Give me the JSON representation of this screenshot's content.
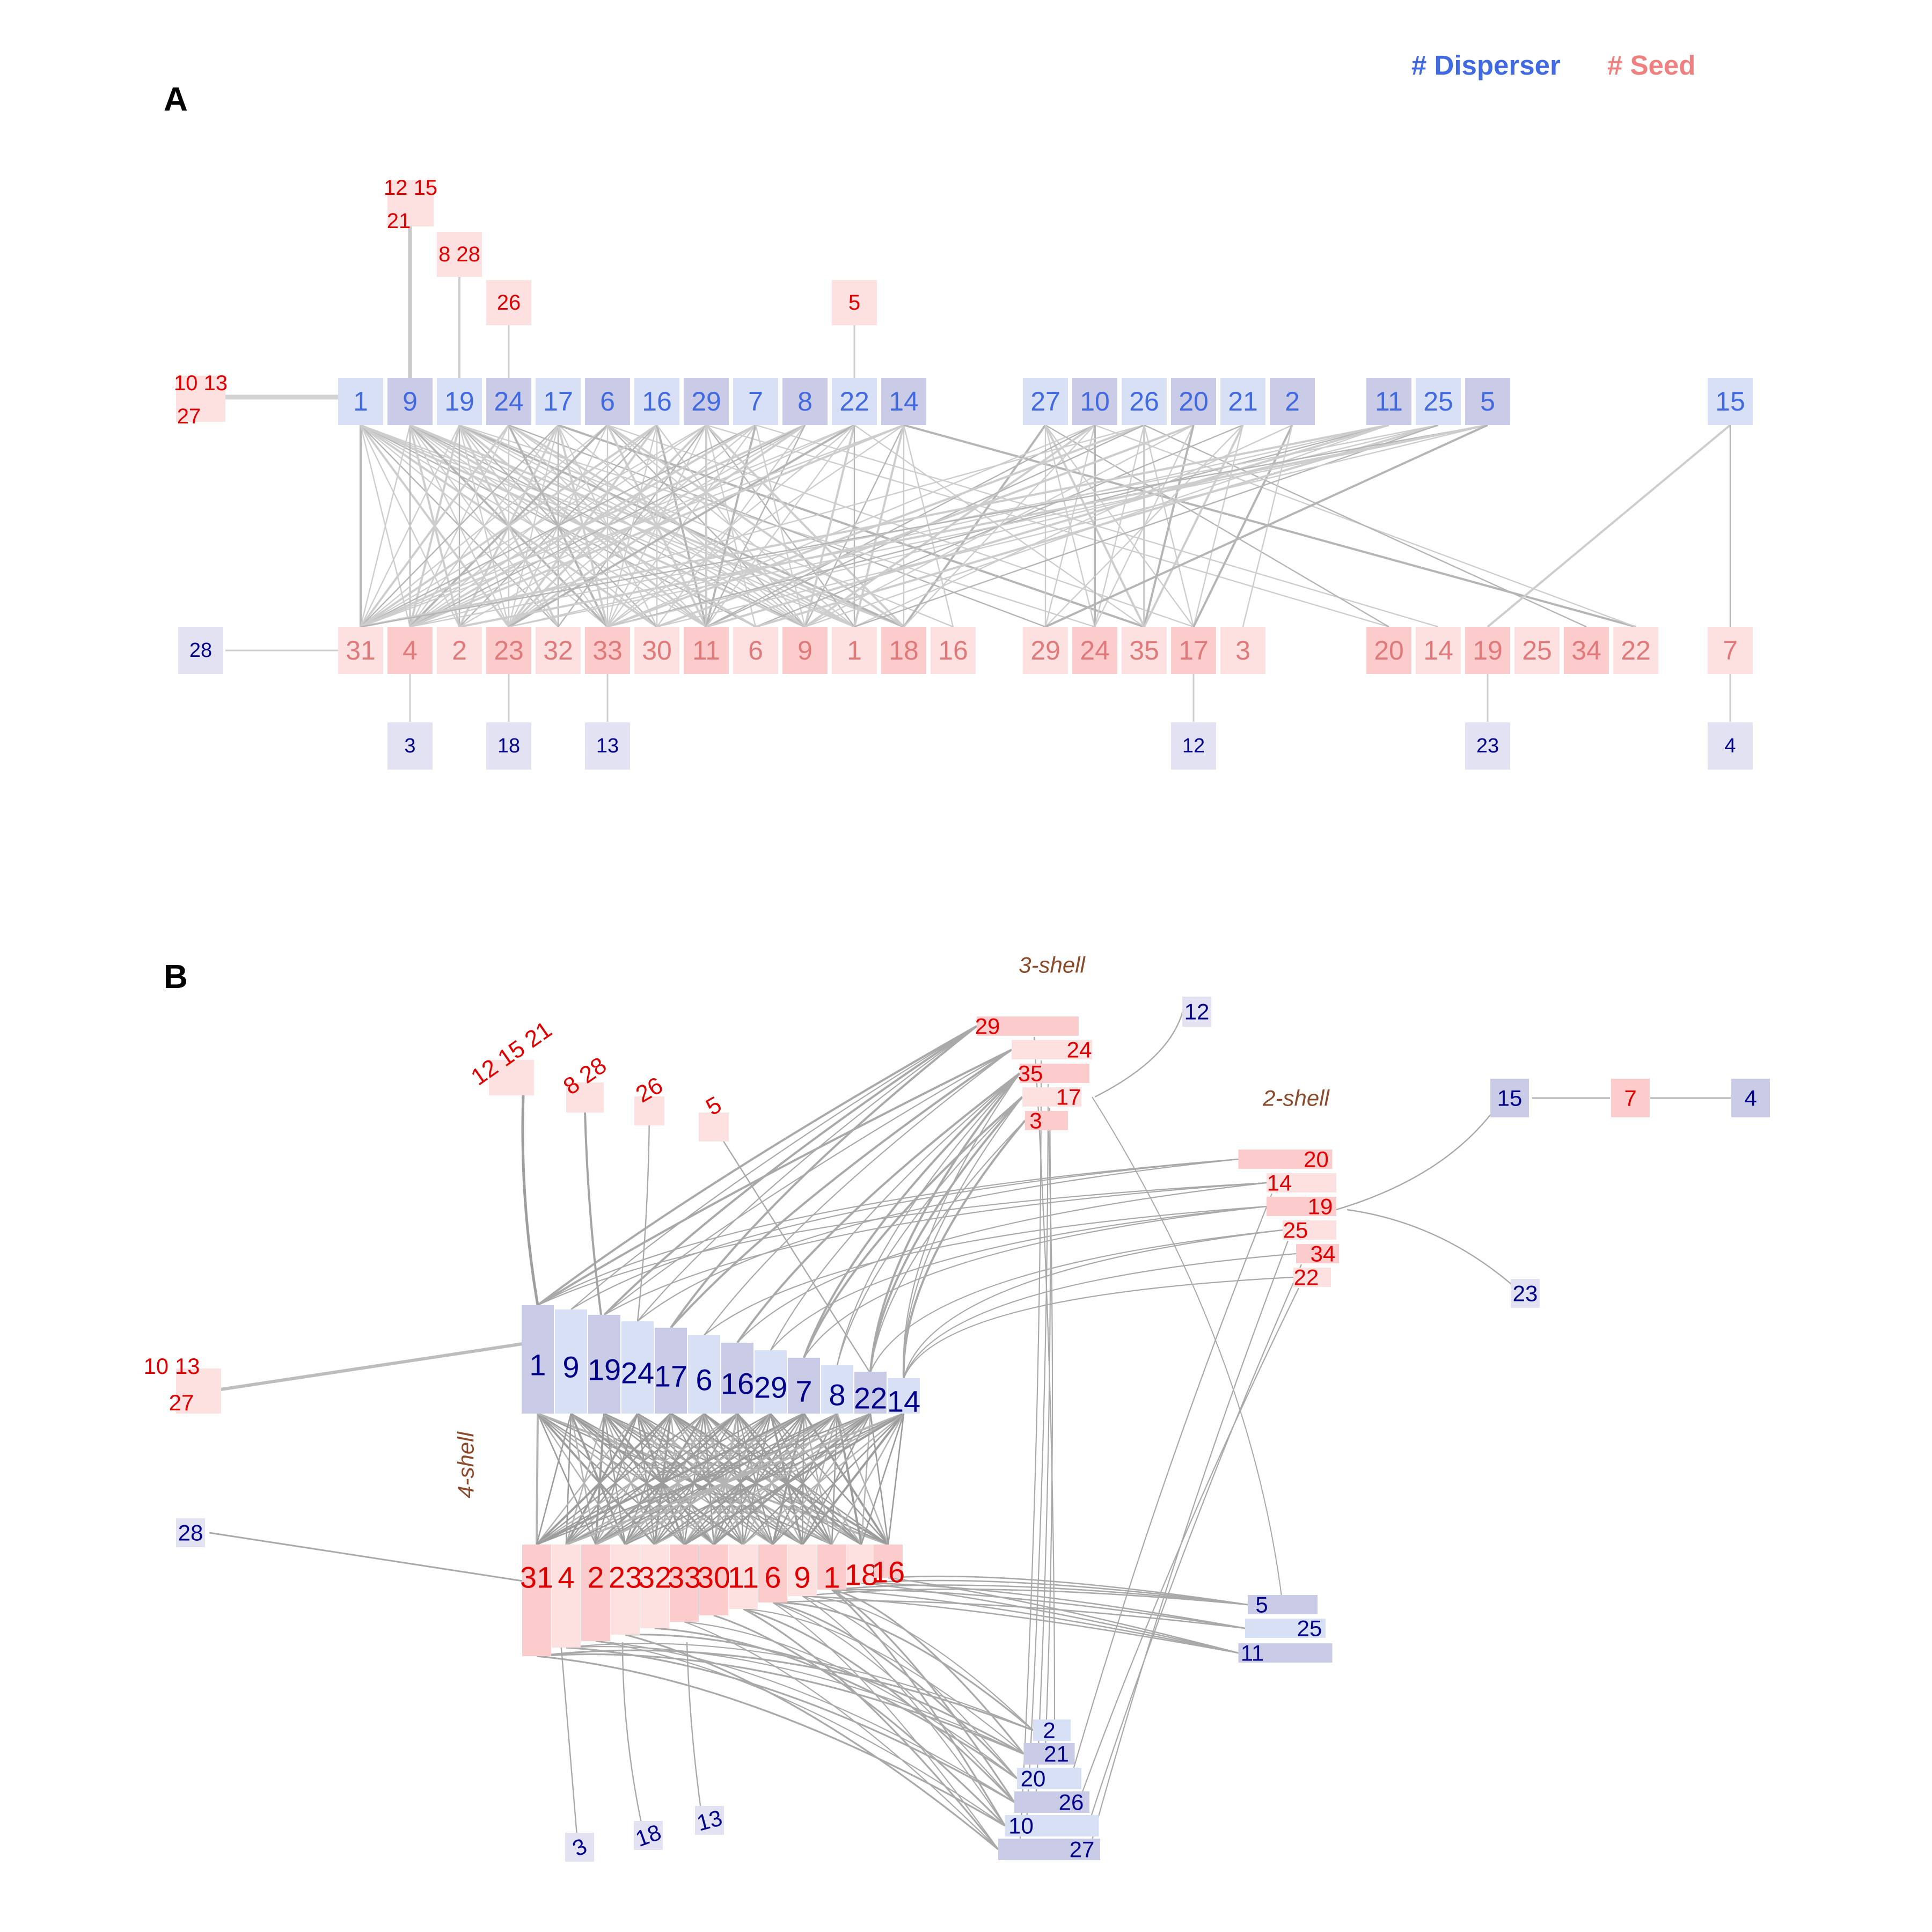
{
  "legend": {
    "disperser": "# Disperser",
    "seed": "# Seed",
    "disperser_color": "#4169e1",
    "seed_color": "#f08080"
  },
  "panel_a": {
    "label": "A",
    "disperser_row": [
      "1",
      "9",
      "19",
      "24",
      "17",
      "6",
      "16",
      "29",
      "7",
      "8",
      "22",
      "14",
      "27",
      "10",
      "26",
      "20",
      "21",
      "2",
      "11",
      "25",
      "5",
      "15"
    ],
    "seed_row": [
      "31",
      "4",
      "2",
      "23",
      "32",
      "33",
      "30",
      "11",
      "6",
      "9",
      "1",
      "18",
      "16",
      "29",
      "24",
      "35",
      "17",
      "3",
      "20",
      "14",
      "19",
      "25",
      "34",
      "22",
      "7"
    ],
    "seed_satellites": [
      {
        "label": "10 13 27",
        "attached_to": "1"
      },
      {
        "label": "12 15 21",
        "attached_to": "9"
      },
      {
        "label": "8 28",
        "attached_to": "19"
      },
      {
        "label": "26",
        "attached_to": "24"
      },
      {
        "label": "5",
        "attached_to": "22"
      }
    ],
    "disperser_satellites": [
      {
        "label": "28",
        "attached_to": "31"
      },
      {
        "label": "3",
        "attached_to": "4"
      },
      {
        "label": "18",
        "attached_to": "23"
      },
      {
        "label": "13",
        "attached_to": "33"
      },
      {
        "label": "12",
        "attached_to": "17"
      },
      {
        "label": "23",
        "attached_to": "19"
      },
      {
        "label": "4",
        "attached_to": "7"
      }
    ]
  },
  "panel_b": {
    "label": "B",
    "shell_labels": {
      "four": "4-shell",
      "three": "3-shell",
      "two": "2-shell"
    },
    "core_dispersers": [
      "1",
      "9",
      "19",
      "24",
      "17",
      "6",
      "16",
      "29",
      "7",
      "8",
      "22",
      "14"
    ],
    "core_seeds": [
      "31",
      "4",
      "2",
      "23",
      "32",
      "33",
      "30",
      "11",
      "6",
      "9",
      "1",
      "18",
      "16"
    ],
    "shell3_seeds": [
      "29",
      "24",
      "35",
      "17",
      "3"
    ],
    "shell2_seeds": [
      "20",
      "14",
      "19",
      "25",
      "34",
      "22"
    ],
    "right_dispersers": [
      "5",
      "25",
      "11"
    ],
    "bottom_dispersers": [
      "2",
      "21",
      "20",
      "26",
      "10",
      "27"
    ],
    "satellites": {
      "d12": "12",
      "d23": "23",
      "d28": "28",
      "d3": "3",
      "d18": "18",
      "d13": "13",
      "s12_15_21": "12 15 21",
      "s8_28": "8 28",
      "s26": "26",
      "s5": "5",
      "s10_13_27": "10 13 27",
      "chain_d15": "15",
      "chain_s7": "7",
      "chain_d4": "4"
    }
  }
}
